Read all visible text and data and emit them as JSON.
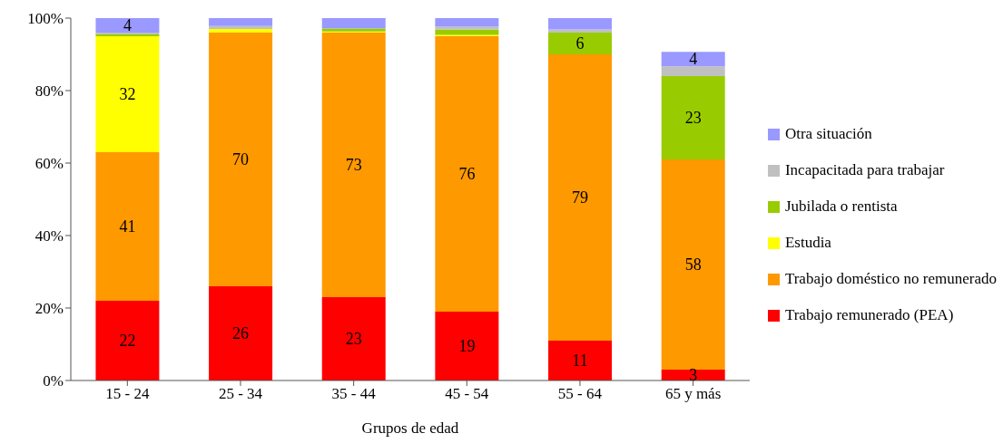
{
  "chart_data": {
    "type": "bar",
    "stacked": true,
    "xlabel": "Grupos de edad",
    "categories": [
      "15 - 24",
      "25 - 34",
      "35 - 44",
      "45 - 54",
      "55 - 64",
      "65 y más"
    ],
    "series": [
      {
        "name": "Trabajo remunerado (PEA)",
        "color": "#ff0000",
        "values": [
          22,
          26,
          23,
          19,
          11,
          3
        ],
        "value_labels": [
          "22",
          "26",
          "23",
          "19",
          "11",
          "3"
        ]
      },
      {
        "name": "Trabajo doméstico no remunerado",
        "color": "#ff9900",
        "values": [
          41,
          70,
          73,
          76,
          79,
          58
        ],
        "value_labels": [
          "41",
          "70",
          "73",
          "76",
          "79",
          "58"
        ]
      },
      {
        "name": "Estudia",
        "color": "#ffff00",
        "values": [
          32,
          1,
          0.3,
          0.4,
          0,
          0
        ],
        "value_labels": [
          "32",
          null,
          null,
          null,
          null,
          null
        ]
      },
      {
        "name": "Jubilada o rentista",
        "color": "#99cc00",
        "values": [
          0.5,
          0,
          0.8,
          1.5,
          6,
          23
        ],
        "value_labels": [
          null,
          null,
          null,
          null,
          "6",
          "23"
        ]
      },
      {
        "name": "Incapacitada para trabajar",
        "color": "#c0c0c0",
        "values": [
          0.5,
          0.8,
          0,
          0.7,
          0.9,
          2.7
        ],
        "value_labels": [
          null,
          null,
          null,
          null,
          null,
          null
        ]
      },
      {
        "name": "Otra situación",
        "color": "#9999ff",
        "values": [
          4,
          2.2,
          2.9,
          2.4,
          3.1,
          4
        ],
        "value_labels": [
          "4",
          null,
          null,
          null,
          null,
          "4"
        ]
      }
    ],
    "ylim": [
      0,
      100
    ],
    "yticks": [
      {
        "value": 0,
        "label": "0%"
      },
      {
        "value": 20,
        "label": "20%"
      },
      {
        "value": 40,
        "label": "40%"
      },
      {
        "value": 60,
        "label": "60%"
      },
      {
        "value": 80,
        "label": "80%"
      },
      {
        "value": 100,
        "label": "100%"
      }
    ],
    "grid": false,
    "legend": "right"
  }
}
